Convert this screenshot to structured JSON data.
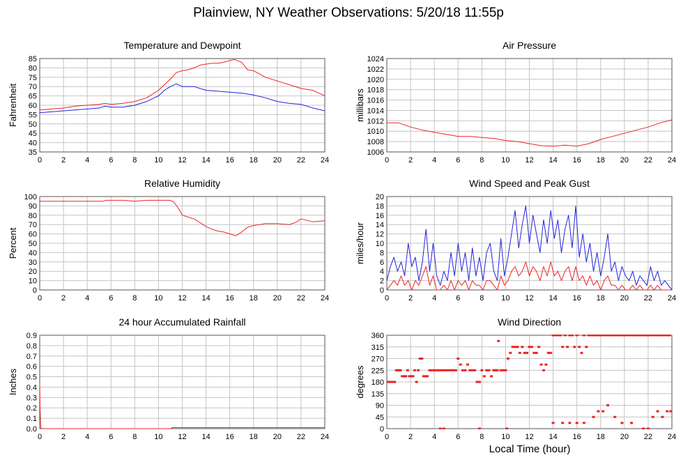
{
  "title": "Plainview, NY Weather Observations: 5/20/18 11:55p",
  "xlabel": "Local Time (hour)",
  "colors": {
    "red": "#ee2222",
    "blue": "#2222dd",
    "grid": "#c4c4c4"
  },
  "chart_data": [
    {
      "id": "temp",
      "type": "line",
      "title": "Temperature and Dewpoint",
      "ylabel": "Fahrenheit",
      "xlim": [
        0,
        24
      ],
      "ylim": [
        35,
        85
      ],
      "xticks": [
        0,
        2,
        4,
        6,
        8,
        10,
        12,
        14,
        16,
        18,
        20,
        22,
        24
      ],
      "yticks": [
        35,
        40,
        45,
        50,
        55,
        60,
        65,
        70,
        75,
        80,
        85
      ],
      "grid": true,
      "series": [
        {
          "color": "#ee2222",
          "x": [
            0,
            1,
            2,
            3,
            4,
            5,
            5.5,
            6,
            7,
            8,
            9,
            10,
            10.5,
            11,
            11.5,
            12,
            12.5,
            13,
            13.5,
            14,
            14.5,
            15,
            15.5,
            16,
            16.4,
            17,
            17.5,
            18,
            19,
            20,
            21,
            22,
            23,
            24
          ],
          "y": [
            57.5,
            58,
            58.5,
            59.5,
            60,
            60.5,
            61,
            60.5,
            61,
            62,
            64,
            68,
            71,
            74,
            77.5,
            78.5,
            79,
            80,
            81.5,
            82,
            82.5,
            82.5,
            83,
            84,
            84.5,
            83,
            79,
            78.5,
            75,
            73,
            71,
            69,
            68,
            65
          ]
        },
        {
          "color": "#2222dd",
          "x": [
            0,
            1,
            2,
            3,
            4,
            5,
            5.5,
            6,
            7,
            8,
            9,
            10,
            10.5,
            11,
            11.5,
            12,
            13,
            14,
            15,
            16,
            17,
            18,
            19,
            20,
            21,
            22,
            23,
            24
          ],
          "y": [
            56,
            56.5,
            57,
            57.5,
            58,
            58.5,
            59.5,
            59,
            59,
            60,
            62,
            65,
            68,
            70,
            71.5,
            70,
            70,
            68,
            67.5,
            67,
            66.5,
            65.5,
            64,
            62,
            61,
            60.5,
            58.5,
            57
          ]
        }
      ]
    },
    {
      "id": "pressure",
      "type": "line",
      "title": "Air Pressure",
      "ylabel": "millibars",
      "xlim": [
        0,
        24
      ],
      "ylim": [
        1006,
        1024
      ],
      "xticks": [
        0,
        2,
        4,
        6,
        8,
        10,
        12,
        14,
        16,
        18,
        20,
        22,
        24
      ],
      "yticks": [
        1006,
        1008,
        1010,
        1012,
        1014,
        1016,
        1018,
        1020,
        1022,
        1024
      ],
      "grid": true,
      "series": [
        {
          "color": "#ee2222",
          "x": [
            0,
            1,
            1.5,
            2,
            3,
            4,
            5,
            6,
            7,
            8,
            9,
            10,
            11,
            12,
            13,
            14,
            15,
            16,
            17,
            18,
            19,
            20,
            21,
            22,
            23,
            24
          ],
          "y": [
            1011.6,
            1011.6,
            1011.2,
            1010.8,
            1010.2,
            1009.8,
            1009.4,
            1009,
            1009,
            1008.8,
            1008.6,
            1008.2,
            1008,
            1007.6,
            1007.2,
            1007.1,
            1007.3,
            1007.1,
            1007.6,
            1008.4,
            1009,
            1009.6,
            1010.2,
            1010.8,
            1011.6,
            1012.2
          ]
        }
      ]
    },
    {
      "id": "humidity",
      "type": "line",
      "title": "Relative Humidity",
      "ylabel": "Percent",
      "xlim": [
        0,
        24
      ],
      "ylim": [
        0,
        100
      ],
      "xticks": [
        0,
        2,
        4,
        6,
        8,
        10,
        12,
        14,
        16,
        18,
        20,
        22,
        24
      ],
      "yticks": [
        0,
        10,
        20,
        30,
        40,
        50,
        60,
        70,
        80,
        90,
        100
      ],
      "grid": true,
      "series": [
        {
          "color": "#ee2222",
          "x": [
            0,
            2,
            4,
            5.3,
            5.6,
            7,
            8,
            9,
            10,
            11,
            11.3,
            11.8,
            12,
            12.5,
            13,
            13.5,
            14,
            14.5,
            15,
            15.5,
            16,
            16.5,
            17,
            17.5,
            18,
            18.5,
            19,
            20,
            21,
            21.5,
            22,
            23,
            24
          ],
          "y": [
            95,
            95,
            95,
            95,
            96,
            96,
            95,
            96,
            96,
            96,
            94,
            85,
            80,
            78,
            76,
            72,
            68,
            65,
            63,
            62,
            60,
            58,
            62,
            67,
            69,
            70,
            71,
            71,
            70,
            72,
            76,
            73,
            74
          ]
        }
      ]
    },
    {
      "id": "wind",
      "type": "line",
      "title": "Wind Speed and Peak Gust",
      "ylabel": "miles/hour",
      "xlim": [
        0,
        24
      ],
      "ylim": [
        0,
        20
      ],
      "xticks": [
        0,
        2,
        4,
        6,
        8,
        10,
        12,
        14,
        16,
        18,
        20,
        22,
        24
      ],
      "yticks": [
        0,
        2,
        4,
        6,
        8,
        10,
        12,
        14,
        16,
        18,
        20
      ],
      "grid": true,
      "series": [
        {
          "color": "#2222dd",
          "x": [
            0,
            0.3,
            0.6,
            0.9,
            1.2,
            1.5,
            1.8,
            2.1,
            2.4,
            2.7,
            3.0,
            3.3,
            3.6,
            3.9,
            4.2,
            4.5,
            4.8,
            5.1,
            5.4,
            5.7,
            6.0,
            6.3,
            6.6,
            6.9,
            7.2,
            7.5,
            7.8,
            8.1,
            8.4,
            8.7,
            9.0,
            9.3,
            9.6,
            9.9,
            10.2,
            10.5,
            10.8,
            11.1,
            11.4,
            11.7,
            12.0,
            12.3,
            12.6,
            12.9,
            13.2,
            13.5,
            13.8,
            14.1,
            14.4,
            14.7,
            15.0,
            15.3,
            15.6,
            15.9,
            16.2,
            16.5,
            16.8,
            17.1,
            17.4,
            17.7,
            18.0,
            18.3,
            18.6,
            18.9,
            19.2,
            19.5,
            19.8,
            20.1,
            20.4,
            20.7,
            21.0,
            21.3,
            21.6,
            21.9,
            22.2,
            22.5,
            22.8,
            23.1,
            23.4,
            23.7,
            24.0
          ],
          "y": [
            2,
            5,
            7,
            4,
            6,
            3,
            10,
            5,
            7,
            2,
            6,
            13,
            4,
            10,
            3,
            1,
            4,
            2,
            8,
            3,
            10,
            4,
            8,
            2,
            9,
            3,
            7,
            2,
            8,
            10,
            4,
            2,
            11,
            3,
            7,
            12,
            17,
            9,
            14,
            18,
            10,
            16,
            12,
            8,
            15,
            10,
            17,
            11,
            15,
            8,
            13,
            16,
            9,
            18,
            7,
            12,
            6,
            10,
            4,
            8,
            3,
            7,
            12,
            4,
            6,
            2,
            5,
            3,
            2,
            4,
            1,
            3,
            2,
            1,
            5,
            2,
            4,
            1,
            2,
            1,
            0
          ]
        },
        {
          "color": "#ee2222",
          "x": [
            0,
            0.3,
            0.6,
            0.9,
            1.2,
            1.5,
            1.8,
            2.1,
            2.4,
            2.7,
            3.0,
            3.3,
            3.6,
            3.9,
            4.2,
            4.5,
            4.8,
            5.1,
            5.4,
            5.7,
            6.0,
            6.3,
            6.6,
            6.9,
            7.2,
            7.5,
            7.8,
            8.1,
            8.4,
            8.7,
            9.0,
            9.3,
            9.6,
            9.9,
            10.2,
            10.5,
            10.8,
            11.1,
            11.4,
            11.7,
            12.0,
            12.3,
            12.6,
            12.9,
            13.2,
            13.5,
            13.8,
            14.1,
            14.4,
            14.7,
            15.0,
            15.3,
            15.6,
            15.9,
            16.2,
            16.5,
            16.8,
            17.1,
            17.4,
            17.7,
            18.0,
            18.3,
            18.6,
            18.9,
            19.2,
            19.5,
            19.8,
            20.1,
            20.4,
            20.7,
            21.0,
            21.3,
            21.6,
            21.9,
            22.2,
            22.5,
            22.8,
            23.1,
            23.4,
            23.7,
            24.0
          ],
          "y": [
            0,
            1,
            2,
            1,
            3,
            1,
            2,
            0,
            2,
            1,
            3,
            5,
            1,
            3,
            0,
            0,
            1,
            0,
            2,
            0,
            2,
            1,
            2,
            0,
            2,
            1,
            1,
            0,
            2,
            2,
            1,
            0,
            3,
            1,
            2,
            4,
            5,
            3,
            4,
            6,
            3,
            5,
            4,
            2,
            5,
            3,
            6,
            3,
            4,
            2,
            4,
            5,
            2,
            5,
            2,
            3,
            1,
            3,
            1,
            2,
            0,
            2,
            3,
            1,
            1,
            0,
            1,
            0,
            0,
            1,
            0,
            1,
            0,
            0,
            1,
            0,
            1,
            0,
            0,
            0,
            0
          ]
        }
      ]
    },
    {
      "id": "rain",
      "type": "line",
      "title": "24 hour Accumulated Rainfall",
      "ylabel": "Inches",
      "xlim": [
        0,
        24
      ],
      "ylim": [
        0,
        0.9
      ],
      "xticks": [
        0,
        2,
        4,
        6,
        8,
        10,
        12,
        14,
        16,
        18,
        20,
        22,
        24
      ],
      "yticks": [
        0.0,
        0.1,
        0.2,
        0.3,
        0.4,
        0.5,
        0.6,
        0.7,
        0.8,
        0.9
      ],
      "ytick_labels": [
        "0.0",
        "0.1",
        "0.2",
        "0.3",
        "0.4",
        "0.5",
        "0.6",
        "0.7",
        "0.8",
        "0.9"
      ],
      "grid": true,
      "series": [
        {
          "color": "#ee2222",
          "x": [
            0,
            0.03,
            0.08,
            0.2,
            11,
            11.2,
            24
          ],
          "y": [
            0.42,
            0.2,
            0.01,
            0,
            0,
            0.01,
            0.01
          ]
        }
      ]
    },
    {
      "id": "winddir",
      "type": "scatter",
      "title": "Wind Direction",
      "ylabel": "degrees",
      "xlim": [
        0,
        24
      ],
      "ylim": [
        0,
        360
      ],
      "xticks": [
        0,
        2,
        4,
        6,
        8,
        10,
        12,
        14,
        16,
        18,
        20,
        22,
        24
      ],
      "yticks": [
        0,
        45,
        90,
        135,
        180,
        225,
        270,
        315,
        360
      ],
      "grid": true,
      "series": [
        {
          "color": "#ee2222",
          "x": [
            0.05,
            0.15,
            0.25,
            0.35,
            0.45,
            0.55,
            0.65,
            0.8,
            0.95,
            1.05,
            1.15,
            1.3,
            1.45,
            1.6,
            1.75,
            1.9,
            2.05,
            2.2,
            2.35,
            2.5,
            2.65,
            2.8,
            2.95,
            3.1,
            3.25,
            3.4,
            3.6,
            3.8,
            4.0,
            4.2,
            4.4,
            4.6,
            4.8,
            5.0,
            5.2,
            5.4,
            5.6,
            5.8,
            6.0,
            6.2,
            6.4,
            6.6,
            6.8,
            7.0,
            7.2,
            7.4,
            7.6,
            7.8,
            8.0,
            8.2,
            8.4,
            8.6,
            8.8,
            9.0,
            9.2,
            9.4,
            9.6,
            9.8,
            10.0,
            10.2,
            10.4,
            10.6,
            10.8,
            11.0,
            11.2,
            11.4,
            11.6,
            11.8,
            12.0,
            12.2,
            12.4,
            12.6,
            12.8,
            13.0,
            13.2,
            13.4,
            13.6,
            13.8,
            14.0,
            14.2,
            14.4,
            14.6,
            14.8,
            15.0,
            15.2,
            15.4,
            15.6,
            15.8,
            16.0,
            16.2,
            16.4,
            16.6,
            16.8,
            17.0,
            17.2,
            17.4,
            17.6,
            17.8,
            18.0,
            18.2,
            18.4,
            18.6,
            18.8,
            19.0,
            19.2,
            19.4,
            19.6,
            19.8,
            20.0,
            20.2,
            20.4,
            20.6,
            20.8,
            21.0,
            21.2,
            21.4,
            21.6,
            21.8,
            22.0,
            22.2,
            22.4,
            22.6,
            22.8,
            23.0,
            23.2,
            23.4,
            23.6,
            23.8,
            14.0,
            14.8,
            15.4,
            16.0,
            16.6,
            17.4,
            17.8,
            18.2,
            18.6,
            19.2,
            19.8,
            20.6,
            21.6,
            22.0,
            22.4,
            22.8,
            23.2,
            23.6,
            23.9,
            4.5,
            4.8,
            7.8,
            9.1,
            9.3,
            10.1
          ],
          "y": [
            180,
            180,
            180,
            180,
            180,
            180,
            180,
            225,
            225,
            225,
            225,
            202,
            202,
            202,
            225,
            202,
            202,
            202,
            225,
            180,
            225,
            270,
            270,
            202,
            202,
            202,
            225,
            225,
            225,
            225,
            225,
            225,
            225,
            225,
            225,
            225,
            225,
            225,
            270,
            247,
            225,
            225,
            247,
            225,
            225,
            225,
            180,
            180,
            225,
            202,
            225,
            225,
            202,
            225,
            225,
            338,
            225,
            225,
            225,
            270,
            292,
            315,
            315,
            315,
            292,
            315,
            292,
            292,
            315,
            315,
            292,
            292,
            315,
            247,
            225,
            247,
            292,
            292,
            360,
            360,
            360,
            360,
            315,
            360,
            315,
            360,
            360,
            315,
            360,
            315,
            292,
            360,
            315,
            360,
            360,
            360,
            360,
            360,
            360,
            360,
            360,
            360,
            360,
            360,
            360,
            360,
            360,
            360,
            360,
            360,
            360,
            360,
            360,
            360,
            360,
            360,
            360,
            360,
            360,
            360,
            360,
            360,
            360,
            360,
            360,
            360,
            360,
            360,
            22,
            22,
            22,
            22,
            22,
            45,
            67,
            67,
            90,
            45,
            22,
            22,
            0,
            0,
            45,
            67,
            45,
            67,
            67,
            0,
            0,
            0,
            225,
            225,
            0
          ]
        }
      ]
    }
  ]
}
